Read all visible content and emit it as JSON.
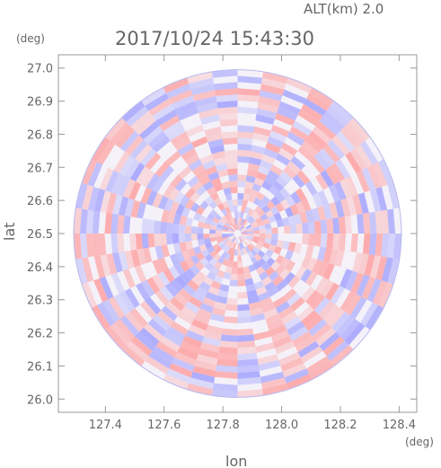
{
  "header": {
    "altitude": "ALT(km) 2.0",
    "timestamp": "2017/10/24 15:43:30"
  },
  "chart_data": {
    "type": "heatmap",
    "title": "2017/10/24 15:43:30",
    "xlabel": "lon",
    "ylabel": "lat",
    "x_unit": "(deg)",
    "y_unit": "(deg)",
    "xlim": [
      127.24,
      128.46
    ],
    "ylim": [
      25.96,
      27.04
    ],
    "x_ticks": [
      127.4,
      127.6,
      127.8,
      128.0,
      128.2,
      128.4
    ],
    "x_tick_labels": [
      "127.4",
      "127.6",
      "127.8",
      "128.0",
      "128.2",
      "128.4"
    ],
    "y_ticks": [
      26.0,
      26.1,
      26.2,
      26.3,
      26.4,
      26.5,
      26.6,
      26.7,
      26.8,
      26.9,
      27.0
    ],
    "y_tick_labels": [
      "26.0",
      "26.1",
      "26.2",
      "26.3",
      "26.4",
      "26.5",
      "26.6",
      "26.7",
      "26.8",
      "26.9",
      "27.0"
    ],
    "radar_center": {
      "lon": 127.85,
      "lat": 26.5
    },
    "radar_coverage_lat_radius_deg": 0.495,
    "colors": {
      "positive": "#ff9a9a",
      "negative": "#9a9aff",
      "axis": "#999999",
      "text": "#666666"
    },
    "grid": false
  }
}
